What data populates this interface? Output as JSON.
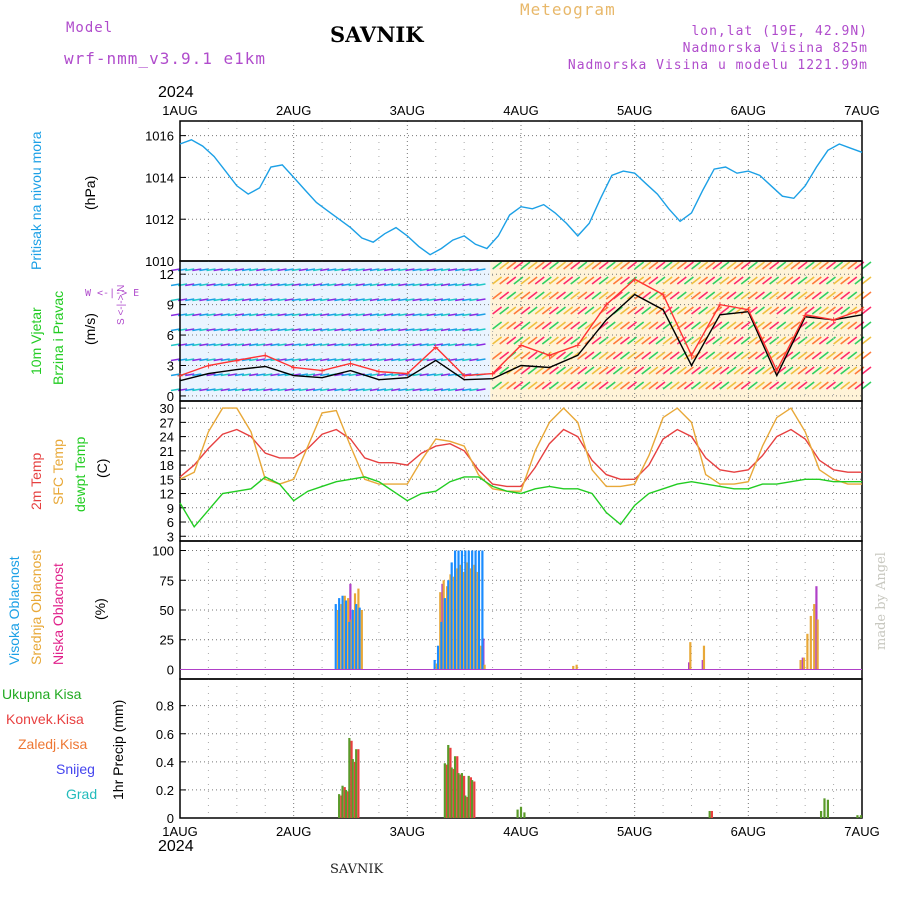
{
  "header": {
    "model_label": "Model",
    "model_name": "wrf-nmm_v3.9.1 e1km",
    "title": "SAVNIK",
    "meteogram": "Meteogram",
    "lonlat": "lon,lat (19E, 42.9N)",
    "elevation": "Nadmorska Visina 825m",
    "model_elevation": "Nadmorska Visina u modelu 1221.99m",
    "year_top": "2024",
    "year_bottom": "2024",
    "footer_station": "SAVNIK",
    "credit": "made by Angel"
  },
  "colors": {
    "pressure": "#1ca0e6",
    "wind_speed": "#000000",
    "wind_gust": "#ff3333",
    "temp_2m": "#e64040",
    "temp_sfc": "#e8a838",
    "dewpoint": "#22cc22",
    "high_cloud": "#1a8cff",
    "mid_cloud": "#e8a838",
    "low_cloud": "#b040c8",
    "total_precip": "#5a9a2a",
    "conv_precip": "#e84040"
  },
  "chart_data": [
    {
      "type": "line",
      "panel": "pressure",
      "ylabel": [
        "Pritisak na nivou mora",
        "(hPa)"
      ],
      "ylim": [
        1010,
        1016.7
      ],
      "yticks": [
        1010,
        1012,
        1014,
        1016
      ],
      "x_days": [
        0,
        0.1,
        0.2,
        0.3,
        0.4,
        0.5,
        0.6,
        0.7,
        0.8,
        0.9,
        1.0,
        1.1,
        1.2,
        1.3,
        1.4,
        1.5,
        1.6,
        1.7,
        1.8,
        1.9,
        2.0,
        2.1,
        2.2,
        2.3,
        2.4,
        2.5,
        2.6,
        2.7,
        2.8,
        2.9,
        3.0,
        3.1,
        3.2,
        3.3,
        3.4,
        3.5,
        3.6,
        3.7,
        3.8,
        3.9,
        4.0,
        4.1,
        4.2,
        4.3,
        4.4,
        4.5,
        4.6,
        4.7,
        4.8,
        4.9,
        5.0,
        5.1,
        5.2,
        5.3,
        5.4,
        5.5,
        5.6,
        5.7,
        5.8,
        5.9,
        6.0
      ],
      "series": [
        {
          "name": "MSLP",
          "values": [
            1015.6,
            1015.8,
            1015.5,
            1015.0,
            1014.3,
            1013.6,
            1013.2,
            1013.5,
            1014.5,
            1014.6,
            1014.0,
            1013.4,
            1012.8,
            1012.4,
            1012.0,
            1011.6,
            1011.1,
            1010.9,
            1011.3,
            1011.6,
            1011.2,
            1010.7,
            1010.3,
            1010.6,
            1011.0,
            1011.2,
            1010.8,
            1010.6,
            1011.2,
            1012.2,
            1012.6,
            1012.5,
            1012.7,
            1012.3,
            1011.8,
            1011.2,
            1011.8,
            1013.0,
            1014.1,
            1014.3,
            1014.2,
            1013.7,
            1013.2,
            1012.5,
            1011.9,
            1012.3,
            1013.4,
            1014.4,
            1014.5,
            1014.2,
            1014.3,
            1014.1,
            1013.6,
            1013.1,
            1013.0,
            1013.6,
            1014.5,
            1015.3,
            1015.6,
            1015.4,
            1015.2
          ]
        }
      ]
    },
    {
      "type": "line",
      "panel": "wind",
      "ylabel": [
        "10m Vjetar",
        "Brzina i Pravac",
        "(m/s)"
      ],
      "compass": "W <-|-> E",
      "compass_ns": "S <-|-> N",
      "ylim": [
        -0.5,
        13.3
      ],
      "yticks": [
        0,
        3,
        6,
        9,
        12
      ],
      "x_days": [
        0,
        0.25,
        0.5,
        0.75,
        1.0,
        1.25,
        1.5,
        1.75,
        2.0,
        2.25,
        2.5,
        2.75,
        3.0,
        3.25,
        3.5,
        3.75,
        4.0,
        4.25,
        4.5,
        4.75,
        5.0,
        5.25,
        5.5,
        5.75,
        6.0
      ],
      "series": [
        {
          "name": "speed",
          "values": [
            1.5,
            2.2,
            2.6,
            2.9,
            2.0,
            1.8,
            2.5,
            1.6,
            1.8,
            3.5,
            1.6,
            1.7,
            3.0,
            2.8,
            4.0,
            7.5,
            10.0,
            8.5,
            3.0,
            8.0,
            8.3,
            2.0,
            7.8,
            7.5,
            8.0
          ]
        },
        {
          "name": "gust",
          "values": [
            2.0,
            3.0,
            3.5,
            4.0,
            2.8,
            2.5,
            3.2,
            2.4,
            2.2,
            4.8,
            2.0,
            2.2,
            5.0,
            4.0,
            5.0,
            9.0,
            11.5,
            10.0,
            4.0,
            9.0,
            8.5,
            2.5,
            8.0,
            7.5,
            8.5
          ]
        }
      ]
    },
    {
      "type": "line",
      "panel": "temperature",
      "ylabel": [
        "2m Temp",
        "SFC Temp",
        "dewpt Temp",
        "(C)"
      ],
      "ylim": [
        2,
        31.5
      ],
      "yticks": [
        3,
        6,
        9,
        12,
        15,
        18,
        21,
        24,
        27,
        30
      ],
      "x_days": [
        0,
        0.125,
        0.25,
        0.375,
        0.5,
        0.625,
        0.75,
        0.875,
        1.0,
        1.125,
        1.25,
        1.375,
        1.5,
        1.625,
        1.75,
        1.875,
        2.0,
        2.125,
        2.25,
        2.375,
        2.5,
        2.625,
        2.75,
        2.875,
        3.0,
        3.125,
        3.25,
        3.375,
        3.5,
        3.625,
        3.75,
        3.875,
        4.0,
        4.125,
        4.25,
        4.375,
        4.5,
        4.625,
        4.75,
        4.875,
        5.0,
        5.125,
        5.25,
        5.375,
        5.5,
        5.625,
        5.75,
        5.875,
        6.0
      ],
      "series": [
        {
          "name": "2m Temp",
          "values": [
            15.5,
            18.0,
            21.5,
            24.5,
            25.5,
            24.0,
            20.5,
            19.5,
            19.5,
            21.5,
            24.5,
            25.5,
            23.5,
            19.5,
            18.5,
            18.5,
            18.0,
            20.5,
            22.0,
            22.5,
            21.0,
            17.0,
            14.0,
            13.5,
            13.5,
            17.5,
            22.5,
            25.5,
            24.0,
            19.0,
            16.0,
            15.0,
            15.0,
            18.0,
            23.5,
            25.5,
            24.0,
            19.5,
            17.0,
            16.5,
            17.0,
            20.0,
            24.0,
            25.5,
            23.5,
            19.0,
            17.0,
            16.5,
            16.5
          ]
        },
        {
          "name": "SFC Temp",
          "values": [
            15.0,
            16.5,
            25.0,
            30.0,
            30.0,
            25.0,
            15.0,
            14.0,
            15.0,
            22.0,
            29.0,
            29.5,
            22.0,
            15.0,
            14.0,
            14.0,
            14.0,
            19.0,
            23.5,
            23.0,
            22.0,
            16.0,
            13.0,
            12.5,
            12.5,
            21.0,
            27.0,
            30.0,
            27.0,
            17.0,
            13.5,
            13.5,
            14.0,
            20.0,
            28.0,
            30.0,
            27.0,
            16.0,
            14.0,
            14.0,
            14.5,
            22.0,
            28.0,
            30.0,
            25.0,
            17.0,
            15.0,
            14.0,
            14.0
          ]
        },
        {
          "name": "dewpt Temp",
          "values": [
            10.0,
            5.0,
            8.5,
            12.0,
            12.5,
            13.0,
            15.5,
            14.0,
            10.5,
            12.5,
            13.5,
            14.5,
            15.0,
            15.5,
            14.5,
            12.5,
            10.5,
            12.0,
            12.5,
            14.5,
            15.5,
            15.5,
            13.5,
            12.5,
            12.0,
            13.0,
            13.5,
            13.0,
            13.0,
            12.0,
            8.0,
            5.5,
            9.5,
            12.0,
            13.0,
            14.0,
            14.5,
            14.0,
            13.5,
            13.0,
            13.0,
            14.0,
            14.0,
            14.5,
            15.0,
            15.0,
            14.5,
            14.5,
            14.5
          ]
        }
      ]
    },
    {
      "type": "bar",
      "panel": "clouds",
      "ylabel": [
        "Visoka Oblacnost",
        "Srednja Oblacnost",
        "Niska Oblacnost",
        "(%)"
      ],
      "ylim": [
        -8,
        108
      ],
      "yticks": [
        0,
        25,
        50,
        75,
        100
      ],
      "x_days": [
        1.38,
        1.41,
        1.44,
        1.47,
        1.5,
        1.53,
        1.56,
        1.59,
        2.25,
        2.28,
        2.31,
        2.34,
        2.37,
        2.4,
        2.43,
        2.46,
        2.49,
        2.52,
        2.55,
        2.58,
        2.61,
        2.64,
        2.67,
        3.45,
        3.48,
        4.45,
        4.48,
        4.51,
        4.54,
        4.57,
        4.6,
        4.63,
        5.45,
        5.48,
        5.51,
        5.54,
        5.57,
        5.6
      ],
      "series": [
        {
          "name": "high",
          "values": [
            55,
            60,
            62,
            58,
            40,
            50,
            55,
            52,
            8,
            20,
            40,
            60,
            75,
            90,
            100,
            100,
            100,
            100,
            100,
            100,
            100,
            100,
            100,
            0,
            0,
            0,
            0,
            0,
            0,
            0,
            0,
            0,
            0,
            0,
            0,
            0,
            0,
            0
          ]
        },
        {
          "name": "mid",
          "values": [
            50,
            55,
            62,
            60,
            42,
            64,
            68,
            50,
            5,
            65,
            75,
            70,
            80,
            78,
            85,
            88,
            82,
            90,
            85,
            88,
            82,
            20,
            4,
            3,
            4,
            0,
            23,
            0,
            0,
            0,
            20,
            0,
            8,
            10,
            30,
            45,
            55,
            42
          ]
        },
        {
          "name": "low",
          "values": [
            0,
            0,
            0,
            72,
            0,
            0,
            0,
            0,
            0,
            72,
            0,
            0,
            0,
            0,
            0,
            0,
            0,
            0,
            0,
            0,
            0,
            26,
            0,
            0,
            0,
            6,
            0,
            0,
            0,
            8,
            0,
            0,
            10,
            0,
            0,
            0,
            70,
            0
          ]
        }
      ]
    },
    {
      "type": "bar",
      "panel": "precip",
      "ylabel": [
        "1hr Precip (mm)"
      ],
      "legend": [
        "Ukupna Kisa",
        "Konvek.Kisa",
        "Zaledj.Kisa",
        "Snijeg",
        "Grad"
      ],
      "ylim": [
        0,
        0.99
      ],
      "yticks": [
        0,
        0.2,
        0.4,
        0.6,
        0.8
      ],
      "ytick_labels": [
        "0",
        "0.2",
        "0.4",
        "0.6",
        "0.8"
      ],
      "x_days": [
        1.4,
        1.43,
        1.46,
        1.49,
        1.52,
        1.55,
        1.58,
        1.61,
        2.33,
        2.36,
        2.39,
        2.42,
        2.45,
        2.48,
        2.51,
        2.54,
        2.57,
        2.6,
        2.63,
        2.66,
        2.97,
        3.0,
        3.03,
        4.66,
        5.64,
        5.67,
        5.7,
        5.96,
        5.99
      ],
      "series": [
        {
          "name": "Ukupna Kisa",
          "values": [
            0.17,
            0.23,
            0.2,
            0.57,
            0.42,
            0.49,
            0.0,
            0.0,
            0.39,
            0.52,
            0.36,
            0.44,
            0.32,
            0.32,
            0.16,
            0.3,
            0.27,
            0.0,
            0.0,
            0.0,
            0.06,
            0.08,
            0.04,
            0.05,
            0.05,
            0.14,
            0.13,
            0.02,
            0.02
          ]
        },
        {
          "name": "Konvek.Kisa",
          "values": [
            0.16,
            0.22,
            0.19,
            0.55,
            0.4,
            0.49,
            0.0,
            0.0,
            0.38,
            0.5,
            0.35,
            0.44,
            0.31,
            0.3,
            0.15,
            0.29,
            0.26,
            0.0,
            0.0,
            0.0,
            0.0,
            0.0,
            0.0,
            0.05,
            0.0,
            0.0,
            0.0,
            0.0,
            0.0
          ]
        }
      ]
    }
  ],
  "x_axis": {
    "labels": [
      "1AUG",
      "2AUG",
      "3AUG",
      "4AUG",
      "5AUG",
      "6AUG",
      "7AUG"
    ]
  }
}
